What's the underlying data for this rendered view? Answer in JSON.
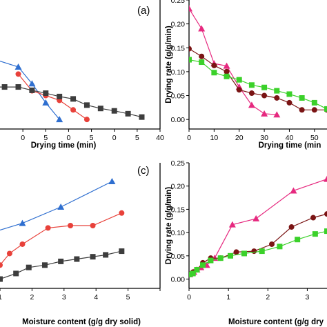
{
  "panel_labels": {
    "a": "(a)",
    "c": "(c)"
  },
  "chart_data": [
    {
      "type": "line",
      "panel": "top-left",
      "xlabel": "Drying time (min)",
      "ylabel": "",
      "xlim": [
        5,
        40
      ],
      "ylim": [
        -0.02,
        0.25
      ],
      "xticks": [
        10,
        15,
        20,
        25,
        30,
        35,
        40
      ],
      "xtick_labels": [
        "0",
        "5",
        "0",
        "5",
        "0",
        "5",
        "40"
      ],
      "yticks": [],
      "series": [
        {
          "marker": "triangle",
          "color": "#2f6fd0",
          "x": [
            3,
            9,
            12,
            15,
            18
          ],
          "y": [
            0.128,
            0.11,
            0.075,
            0.035,
            0.0
          ]
        },
        {
          "marker": "circle",
          "color": "#e8413a",
          "x": [
            9,
            12,
            15,
            18,
            21,
            24
          ],
          "y": [
            0.095,
            0.06,
            0.05,
            0.04,
            0.02,
            0.0
          ]
        },
        {
          "marker": "square",
          "color": "#3d3d3d",
          "x": [
            3,
            6,
            9,
            12,
            15,
            18,
            21,
            24,
            27,
            30,
            33,
            36
          ],
          "y": [
            0.068,
            0.068,
            0.068,
            0.061,
            0.055,
            0.048,
            0.043,
            0.03,
            0.023,
            0.018,
            0.012,
            0.005
          ]
        }
      ]
    },
    {
      "type": "line",
      "panel": "top-right",
      "xlabel": "Drying time (min",
      "ylabel": "Drying rate (g/g/min)",
      "xlim": [
        0,
        55
      ],
      "ylim": [
        -0.02,
        0.25
      ],
      "xticks": [
        0,
        10,
        20,
        30,
        40,
        50
      ],
      "xtick_labels": [
        "0",
        "10",
        "20",
        "30",
        "40",
        "50"
      ],
      "yticks": [
        0.0,
        0.05,
        0.1,
        0.15,
        0.2,
        0.25
      ],
      "ytick_labels": [
        "0.00",
        "0.05",
        "0.10",
        "0.15",
        "0.20",
        "0.25"
      ],
      "series": [
        {
          "marker": "triangle",
          "color": "#e6297f",
          "x": [
            0,
            5,
            10,
            15,
            20,
            25,
            30,
            35
          ],
          "y": [
            0.232,
            0.19,
            0.117,
            0.112,
            0.068,
            0.03,
            0.012,
            0.01
          ]
        },
        {
          "marker": "circle",
          "color": "#7a1414",
          "x": [
            0,
            5,
            10,
            15,
            20,
            25,
            30,
            35,
            40,
            45,
            50,
            55
          ],
          "y": [
            0.148,
            0.132,
            0.113,
            0.1,
            0.062,
            0.055,
            0.05,
            0.045,
            0.035,
            0.02,
            0.02,
            0.02
          ]
        },
        {
          "marker": "square",
          "color": "#3bd12a",
          "x": [
            0,
            5,
            10,
            15,
            20,
            25,
            30,
            35,
            40,
            45,
            50,
            55
          ],
          "y": [
            0.125,
            0.12,
            0.098,
            0.09,
            0.083,
            0.072,
            0.067,
            0.06,
            0.053,
            0.045,
            0.035,
            0.022
          ]
        }
      ]
    },
    {
      "type": "line",
      "panel": "bottom-left",
      "xlabel": "Moisture content (g/g dry solid)",
      "ylabel": "",
      "xlim": [
        1,
        6
      ],
      "ylim": [
        -0.02,
        0.25
      ],
      "xticks": [
        1,
        2,
        3,
        4,
        5,
        6
      ],
      "xtick_labels": [
        "1",
        "2",
        "3",
        "4",
        "5",
        ""
      ],
      "yticks": [],
      "series": [
        {
          "marker": "triangle",
          "color": "#2f6fd0",
          "x": [
            0.5,
            1.7,
            2.9,
            4.5
          ],
          "y": [
            0.095,
            0.12,
            0.155,
            0.21
          ]
        },
        {
          "marker": "circle",
          "color": "#e8413a",
          "x": [
            0.5,
            1.0,
            1.3,
            1.7,
            2.5,
            3.2,
            3.9,
            4.8
          ],
          "y": [
            0.0,
            0.03,
            0.055,
            0.075,
            0.11,
            0.115,
            0.115,
            0.142
          ]
        },
        {
          "marker": "square",
          "color": "#3d3d3d",
          "x": [
            0.5,
            1.0,
            1.5,
            1.9,
            2.4,
            2.9,
            3.4,
            3.9,
            4.3,
            4.8
          ],
          "y": [
            -0.005,
            0.0,
            0.012,
            0.025,
            0.03,
            0.038,
            0.043,
            0.048,
            0.052,
            0.06
          ]
        }
      ]
    },
    {
      "type": "line",
      "panel": "bottom-right",
      "xlabel": "Moisture content (g/g dry",
      "ylabel": "Drying rate (g/g/min)",
      "xlim": [
        0,
        3.5
      ],
      "ylim": [
        -0.02,
        0.25
      ],
      "xticks": [
        0,
        1,
        2,
        3
      ],
      "xtick_labels": [
        "0",
        "1",
        "2",
        "3"
      ],
      "yticks": [
        0.0,
        0.05,
        0.1,
        0.15,
        0.2,
        0.25
      ],
      "ytick_labels": [
        "0.00",
        "0.05",
        "0.10",
        "0.15",
        "0.20",
        "0.25"
      ],
      "series": [
        {
          "marker": "triangle",
          "color": "#e6297f",
          "x": [
            0.02,
            0.06,
            0.12,
            0.2,
            0.3,
            0.45,
            0.65,
            1.1,
            1.7,
            2.65,
            3.5
          ],
          "y": [
            0.01,
            0.012,
            0.015,
            0.02,
            0.025,
            0.03,
            0.045,
            0.117,
            0.13,
            0.19,
            0.215
          ]
        },
        {
          "marker": "circle",
          "color": "#7a1414",
          "x": [
            0.02,
            0.1,
            0.2,
            0.35,
            0.55,
            0.8,
            1.2,
            1.65,
            2.1,
            2.6,
            3.15,
            3.5
          ],
          "y": [
            0.01,
            0.015,
            0.02,
            0.035,
            0.045,
            0.045,
            0.058,
            0.06,
            0.075,
            0.112,
            0.132,
            0.14
          ]
        },
        {
          "marker": "square",
          "color": "#3bd12a",
          "x": [
            0.02,
            0.1,
            0.2,
            0.35,
            0.55,
            0.8,
            1.05,
            1.4,
            1.85,
            2.3,
            2.75,
            3.2,
            3.5
          ],
          "y": [
            0.01,
            0.012,
            0.02,
            0.03,
            0.04,
            0.045,
            0.05,
            0.055,
            0.06,
            0.07,
            0.085,
            0.097,
            0.103
          ]
        }
      ]
    }
  ]
}
